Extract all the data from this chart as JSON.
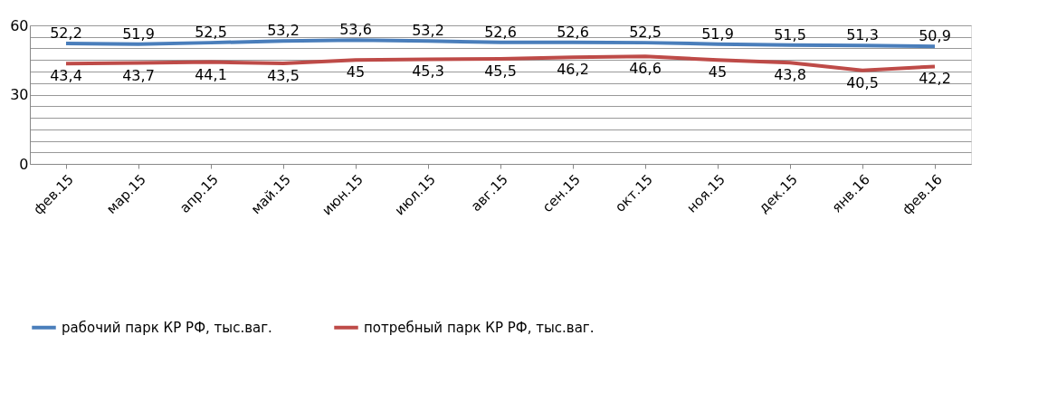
{
  "chart_data": {
    "type": "line",
    "categories": [
      "фев.15",
      "мар.15",
      "апр.15",
      "май.15",
      "июн.15",
      "июл.15",
      "авг.15",
      "сен.15",
      "окт.15",
      "ноя.15",
      "дек.15",
      "янв.16",
      "фев.16"
    ],
    "series": [
      {
        "name": "рабочий парк КР РФ, тыс.ваг.",
        "color": "#4a7ebb",
        "values": [
          52.2,
          51.9,
          52.5,
          53.2,
          53.6,
          53.2,
          52.6,
          52.6,
          52.5,
          51.9,
          51.5,
          51.3,
          50.9
        ],
        "value_labels": [
          "52,2",
          "51,9",
          "52,5",
          "53,2",
          "53,6",
          "53,2",
          "52,6",
          "52,6",
          "52,5",
          "51,9",
          "51,5",
          "51,3",
          "50,9"
        ]
      },
      {
        "name": "потребный парк КР РФ, тыс.ваг.",
        "color": "#be4b48",
        "values": [
          43.4,
          43.7,
          44.1,
          43.5,
          45,
          45.3,
          45.5,
          46.2,
          46.6,
          45,
          43.8,
          40.5,
          42.2
        ],
        "value_labels": [
          "43,4",
          "43,7",
          "44,1",
          "43,5",
          "45",
          "45,3",
          "45,5",
          "46,2",
          "46,6",
          "45",
          "43,8",
          "40,5",
          "42,2"
        ]
      }
    ],
    "ylim": [
      0,
      60
    ],
    "yticks": [
      0,
      {
        "value": 5,
        "label": null
      },
      {
        "value": 10,
        "label": null
      },
      {
        "value": 15,
        "label": null
      },
      {
        "value": 20,
        "label": null
      },
      {
        "value": 25,
        "label": null
      },
      30,
      {
        "value": 35,
        "label": null
      },
      {
        "value": 40,
        "label": null
      },
      {
        "value": 45,
        "label": null
      },
      {
        "value": 50,
        "label": null
      },
      {
        "value": 55,
        "label": null
      },
      60
    ],
    "grid": "y",
    "legend": "bottom",
    "marker": "none",
    "line_style": "solid"
  }
}
